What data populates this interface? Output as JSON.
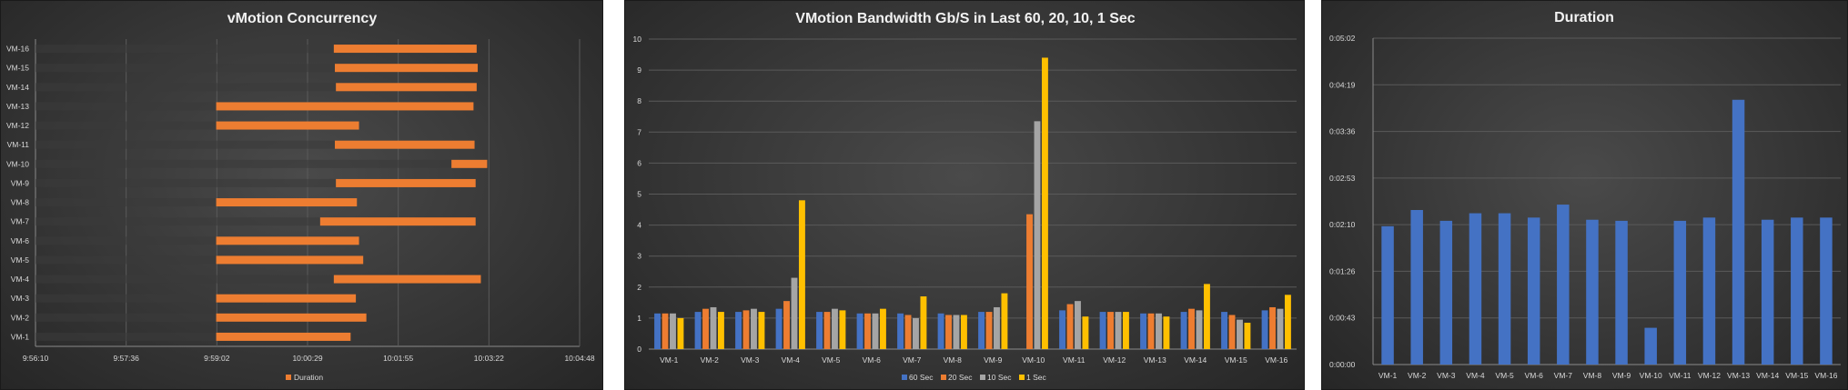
{
  "colors": {
    "duration_bar": "#ed7d31",
    "series_60": "#4472c4",
    "series_20": "#ed7d31",
    "series_10": "#a5a5a5",
    "series_1": "#ffc000",
    "duration_col": "#4472c4",
    "grid": "#5a5a5a",
    "text": "#d9d9d9"
  },
  "chart_data": [
    {
      "type": "bar",
      "orientation": "horizontal",
      "stacked": true,
      "title": "vMotion Concurrency",
      "categories": [
        "VM-1",
        "VM-2",
        "VM-3",
        "VM-4",
        "VM-5",
        "VM-6",
        "VM-7",
        "VM-8",
        "VM-9",
        "VM-10",
        "VM-11",
        "VM-12",
        "VM-13",
        "VM-14",
        "VM-15",
        "VM-16"
      ],
      "x_tick_labels": [
        "9:56:10",
        "9:57:36",
        "9:59:02",
        "10:00:29",
        "10:01:55",
        "10:03:22",
        "10:04:48"
      ],
      "xlim_seconds": [
        35770,
        36288
      ],
      "start_seconds": [
        35942,
        35942,
        35942,
        36054,
        35942,
        35942,
        36041,
        35942,
        36056,
        36166,
        36055,
        35942,
        35942,
        36056,
        36055,
        36054
      ],
      "series": [
        {
          "name": "Duration",
          "values": [
            128,
            143,
            133,
            140,
            140,
            136,
            148,
            134,
            133,
            34,
            133,
            136,
            245,
            134,
            136,
            136
          ]
        }
      ],
      "legend_position": "bottom",
      "grid": true
    },
    {
      "type": "bar",
      "title": "VMotion Bandwidth Gb/S in Last 60, 20, 10, 1 Sec",
      "categories": [
        "VM-1",
        "VM-2",
        "VM-3",
        "VM-4",
        "VM-5",
        "VM-6",
        "VM-7",
        "VM-8",
        "VM-9",
        "VM-10",
        "VM-11",
        "VM-12",
        "VM-13",
        "VM-14",
        "VM-15",
        "VM-16"
      ],
      "ylim": [
        0,
        10
      ],
      "y_ticks": [
        0,
        1,
        2,
        3,
        4,
        5,
        6,
        7,
        8,
        9,
        10
      ],
      "series": [
        {
          "name": "60 Sec",
          "values": [
            1.15,
            1.2,
            1.2,
            1.3,
            1.2,
            1.15,
            1.15,
            1.15,
            1.2,
            0,
            1.25,
            1.2,
            1.15,
            1.2,
            1.2,
            1.25
          ]
        },
        {
          "name": "20 Sec",
          "values": [
            1.15,
            1.3,
            1.25,
            1.55,
            1.2,
            1.15,
            1.1,
            1.1,
            1.2,
            4.35,
            1.45,
            1.2,
            1.15,
            1.3,
            1.1,
            1.35
          ]
        },
        {
          "name": "10 Sec",
          "values": [
            1.15,
            1.35,
            1.3,
            2.3,
            1.3,
            1.15,
            1.0,
            1.1,
            1.35,
            7.35,
            1.55,
            1.2,
            1.15,
            1.25,
            0.95,
            1.3
          ]
        },
        {
          "name": "1 Sec",
          "values": [
            1.0,
            1.2,
            1.2,
            4.8,
            1.25,
            1.3,
            1.7,
            1.1,
            1.8,
            9.4,
            1.05,
            1.2,
            1.05,
            2.1,
            0.85,
            1.75
          ]
        }
      ],
      "legend_position": "bottom",
      "grid": true
    },
    {
      "type": "bar",
      "title": "Duration",
      "categories": [
        "VM-1",
        "VM-2",
        "VM-3",
        "VM-4",
        "VM-5",
        "VM-6",
        "VM-7",
        "VM-8",
        "VM-9",
        "VM-10",
        "VM-11",
        "VM-12",
        "VM-13",
        "VM-14",
        "VM-15",
        "VM-16"
      ],
      "y_tick_labels": [
        "0:00:00",
        "0:00:43",
        "0:01:26",
        "0:02:10",
        "0:02:53",
        "0:03:36",
        "0:04:19",
        "0:05:02"
      ],
      "ylim_seconds": [
        0,
        302
      ],
      "values_seconds": [
        128,
        143,
        133,
        140,
        140,
        136,
        148,
        134,
        133,
        34,
        133,
        136,
        245,
        134,
        136,
        136
      ],
      "grid": true
    }
  ]
}
